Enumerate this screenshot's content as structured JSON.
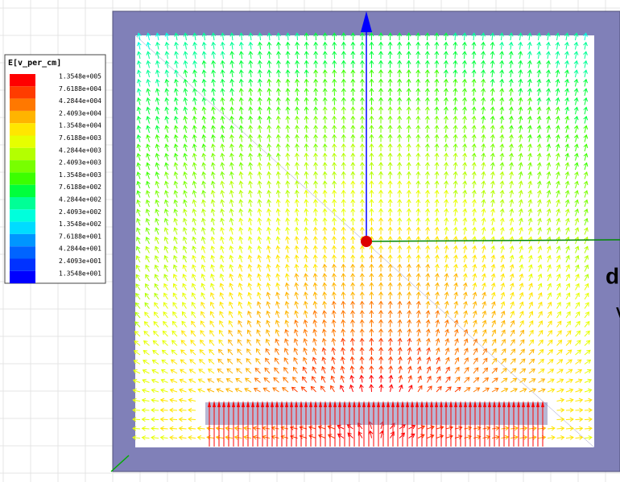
{
  "legend": {
    "title": "E[v_per_cm]",
    "entries": [
      {
        "label": "1.3548e+005",
        "color": "#ff0000"
      },
      {
        "label": "7.6188e+004",
        "color": "#ff3c00"
      },
      {
        "label": "4.2844e+004",
        "color": "#ff7800"
      },
      {
        "label": "2.4093e+004",
        "color": "#ffb400"
      },
      {
        "label": "1.3548e+004",
        "color": "#ffe600"
      },
      {
        "label": "7.6188e+003",
        "color": "#e6ff00"
      },
      {
        "label": "4.2844e+003",
        "color": "#b4ff00"
      },
      {
        "label": "2.4093e+003",
        "color": "#78ff00"
      },
      {
        "label": "1.3548e+003",
        "color": "#3cff00"
      },
      {
        "label": "7.6188e+002",
        "color": "#00ff3c"
      },
      {
        "label": "4.2844e+002",
        "color": "#00ff96"
      },
      {
        "label": "2.4093e+002",
        "color": "#00ffdc"
      },
      {
        "label": "1.3548e+002",
        "color": "#00dcff"
      },
      {
        "label": "7.6188e+001",
        "color": "#0096ff"
      },
      {
        "label": "4.2844e+001",
        "color": "#0064ff"
      },
      {
        "label": "2.4093e+001",
        "color": "#0032ff"
      },
      {
        "label": "1.3548e+001",
        "color": "#0000ff"
      }
    ]
  },
  "side_text": [
    "d",
    "V"
  ]
}
